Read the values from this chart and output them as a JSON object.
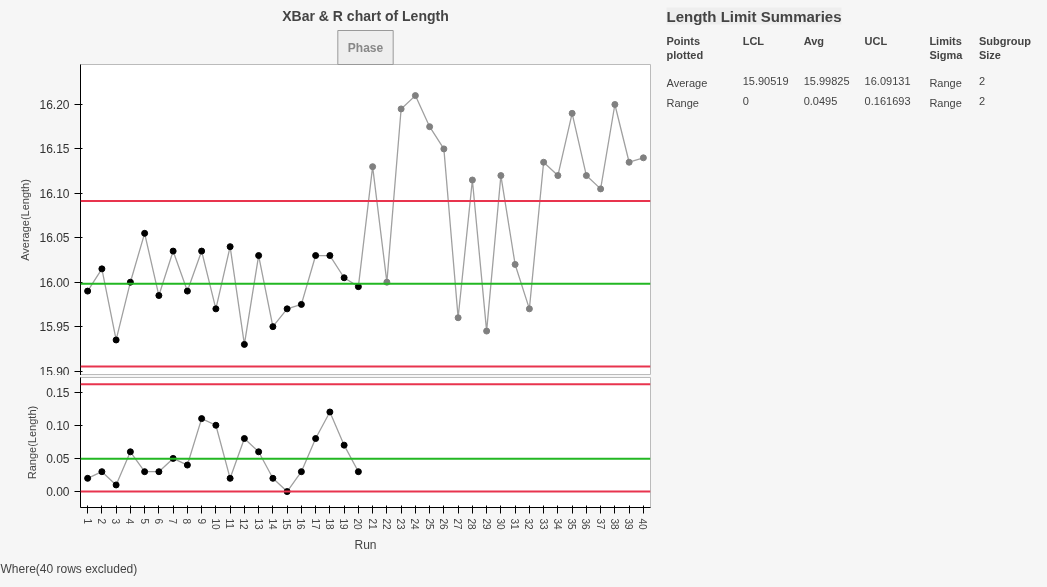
{
  "chart_data": [
    {
      "type": "line",
      "title": "XBar & R chart of Length",
      "ylabel": "Average(Length)",
      "annotations": [
        "Phase"
      ],
      "x": [
        1,
        2,
        3,
        4,
        5,
        6,
        7,
        8,
        9,
        10,
        11,
        12,
        13,
        14,
        15,
        16,
        17,
        18,
        19,
        20,
        21,
        22,
        23,
        24,
        25,
        26,
        27,
        28,
        29,
        30,
        31,
        32,
        33,
        34,
        35,
        36,
        37,
        38,
        39,
        40
      ],
      "series": [
        {
          "color": "#a0a0a0",
          "colors": [
            "#000000",
            "#000000",
            "#000000",
            "#000000",
            "#000000",
            "#000000",
            "#000000",
            "#000000",
            "#000000",
            "#000000",
            "#000000",
            "#000000",
            "#000000",
            "#000000",
            "#000000",
            "#000000",
            "#000000",
            "#000000",
            "#000000",
            "#000000",
            "#808080",
            "#808080",
            "#808080",
            "#808080",
            "#808080",
            "#808080",
            "#808080",
            "#808080",
            "#808080",
            "#808080",
            "#808080",
            "#808080",
            "#808080",
            "#808080",
            "#808080",
            "#808080",
            "#808080",
            "#808080",
            "#808080",
            "#808080"
          ],
          "values": [
            15.99,
            16.015,
            15.935,
            16.0,
            16.055,
            15.985,
            16.035,
            15.99,
            16.035,
            15.97,
            16.04,
            15.93,
            16.03,
            15.95,
            15.97,
            15.975,
            16.03,
            16.03,
            16.005,
            15.995,
            16.13,
            16.0,
            16.195,
            16.21,
            16.175,
            16.15,
            15.96,
            16.115,
            15.945,
            16.12,
            16.02,
            15.97,
            16.135,
            16.12,
            16.19,
            16.12,
            16.105,
            16.2,
            16.135,
            16.14
          ]
        }
      ],
      "xlim": [
        0.5,
        40.5
      ],
      "ylim": [
        15.895,
        16.245
      ],
      "yticks": [
        {
          "value": 15.9,
          "label": "15.90"
        },
        {
          "value": 15.95,
          "label": "15.95"
        },
        {
          "value": 16.0,
          "label": "16.00"
        },
        {
          "value": 16.05,
          "label": "16.05"
        },
        {
          "value": 16.1,
          "label": "16.10"
        },
        {
          "value": 16.15,
          "label": "16.15"
        },
        {
          "value": 16.2,
          "label": "16.20"
        }
      ],
      "tick_labels": "y",
      "marker": "circle",
      "line_style": "solid",
      "grid": false,
      "ref_lines": [
        {
          "axis": "y",
          "value": 16.09131,
          "color": "#e8344e"
        },
        {
          "axis": "y",
          "value": 15.99825,
          "color": "#22b722"
        },
        {
          "axis": "y",
          "value": 15.90519,
          "color": "#e8344e"
        }
      ]
    },
    {
      "type": "line",
      "xlabel": "Run",
      "ylabel": "Range(Length)",
      "annotations": [
        "Where(40 rows excluded)"
      ],
      "x": [
        1,
        2,
        3,
        4,
        5,
        6,
        7,
        8,
        9,
        10,
        11,
        12,
        13,
        14,
        15,
        16,
        17,
        18,
        19,
        20
      ],
      "series": [
        {
          "color": "#a0a0a0",
          "colors": [
            "#000000",
            "#000000",
            "#000000",
            "#000000",
            "#000000",
            "#000000",
            "#000000",
            "#000000",
            "#000000",
            "#000000",
            "#000000",
            "#000000",
            "#000000",
            "#000000",
            "#000000",
            "#000000",
            "#000000",
            "#000000",
            "#000000",
            "#000000"
          ],
          "values": [
            0.02,
            0.03,
            0.01,
            0.06,
            0.03,
            0.03,
            0.05,
            0.04,
            0.11,
            0.1,
            0.02,
            0.08,
            0.06,
            0.02,
            0.0,
            0.03,
            0.08,
            0.12,
            0.07,
            0.03
          ]
        }
      ],
      "xlim": [
        0.5,
        40.5
      ],
      "ylim": [
        -0.024,
        0.172
      ],
      "xticks": [
        1,
        2,
        3,
        4,
        5,
        6,
        7,
        8,
        9,
        10,
        11,
        12,
        13,
        14,
        15,
        16,
        17,
        18,
        19,
        20,
        21,
        22,
        23,
        24,
        25,
        26,
        27,
        28,
        29,
        30,
        31,
        32,
        33,
        34,
        35,
        36,
        37,
        38,
        39,
        40
      ],
      "yticks": [
        {
          "value": 0.0,
          "label": "0.00"
        },
        {
          "value": 0.05,
          "label": "0.05"
        },
        {
          "value": 0.1,
          "label": "0.10"
        },
        {
          "value": 0.15,
          "label": "0.15"
        }
      ],
      "marker": "circle",
      "line_style": "solid",
      "grid": false,
      "ref_lines": [
        {
          "axis": "y",
          "value": 0.161693,
          "color": "#e8344e"
        },
        {
          "axis": "y",
          "value": 0.0495,
          "color": "#22b722"
        },
        {
          "axis": "y",
          "value": 0,
          "color": "#e8344e"
        }
      ]
    },
    {
      "type": "other",
      "title": "Length Limit Summaries",
      "annotations": [
        "Points plotted",
        "LCL",
        "Avg",
        "UCL",
        "Limits Sigma",
        "Subgroup Size",
        "Average",
        "15.90519",
        "15.99825",
        "16.09131",
        "Range",
        "2",
        "Range",
        "0",
        "0.0495",
        "0.161693",
        "Range",
        "2"
      ]
    }
  ]
}
